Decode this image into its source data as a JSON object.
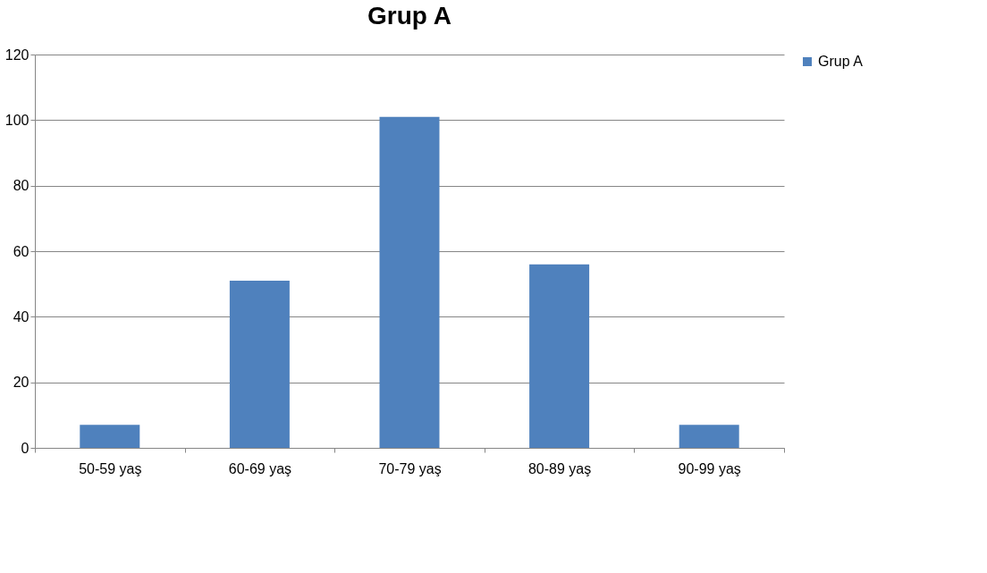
{
  "chart_data": {
    "type": "bar",
    "title": "Grup A",
    "categories": [
      "50-59 yaş",
      "60-69 yaş",
      "70-79 yaş",
      "80-89 yaş",
      "90-99 yaş"
    ],
    "series": [
      {
        "name": "Grup A",
        "color": "#4f81bd",
        "values": [
          7,
          51,
          101,
          56,
          7
        ]
      }
    ],
    "ylim": [
      0,
      120
    ],
    "yticks": [
      0,
      20,
      40,
      60,
      80,
      100,
      120
    ],
    "grid": "y",
    "legend": "right"
  }
}
